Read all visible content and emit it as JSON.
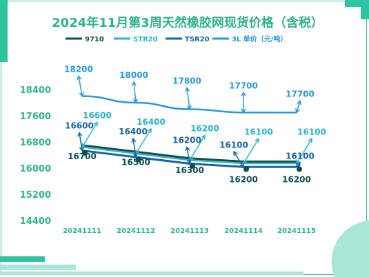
{
  "colors": {
    "accent": "#2fb38a",
    "deco_teal": "#2ec4a0",
    "deco_mint": "#a9e6d7",
    "s9710": "#0f4d4f",
    "sSTR20": "#2bb3c8",
    "sTSR20": "#1763a6",
    "s3L": "#2a97dc"
  },
  "chart_data": {
    "type": "line",
    "title": "2024年11月第3周天然橡胶网现货价格（含税）",
    "xlabel": "",
    "ylabel": "",
    "categories": [
      "20241111",
      "20241112",
      "20241113",
      "20241114",
      "20241115"
    ],
    "y_ticks": [
      "18400",
      "17600",
      "16800",
      "16000",
      "15200",
      "14400"
    ],
    "ylim": [
      14400,
      18800
    ],
    "grid": false,
    "legend_position": "top",
    "series": [
      {
        "name": "9710",
        "color": "#0f4d4f",
        "values": [
          16700,
          16500,
          16300,
          16200,
          16200
        ],
        "labels": [
          "16700",
          "16500",
          "16300",
          "16200",
          "16200"
        ]
      },
      {
        "name": "STR20",
        "color": "#2bb3c8",
        "values": [
          16600,
          16400,
          16200,
          16100,
          16100
        ],
        "labels": [
          "16600",
          "16400",
          "16200",
          "16100",
          "16100"
        ]
      },
      {
        "name": "TSR20",
        "color": "#1763a6",
        "values": [
          16600,
          16400,
          16200,
          16100,
          16100
        ],
        "labels": [
          "16600",
          "16400",
          "16200",
          "16100",
          "16100"
        ]
      },
      {
        "name": "3L 单价（元/吨）",
        "color": "#2a97dc",
        "values": [
          18200,
          18000,
          17800,
          17700,
          17700
        ],
        "labels": [
          "18200",
          "18000",
          "17800",
          "17700",
          "17700"
        ]
      }
    ]
  }
}
